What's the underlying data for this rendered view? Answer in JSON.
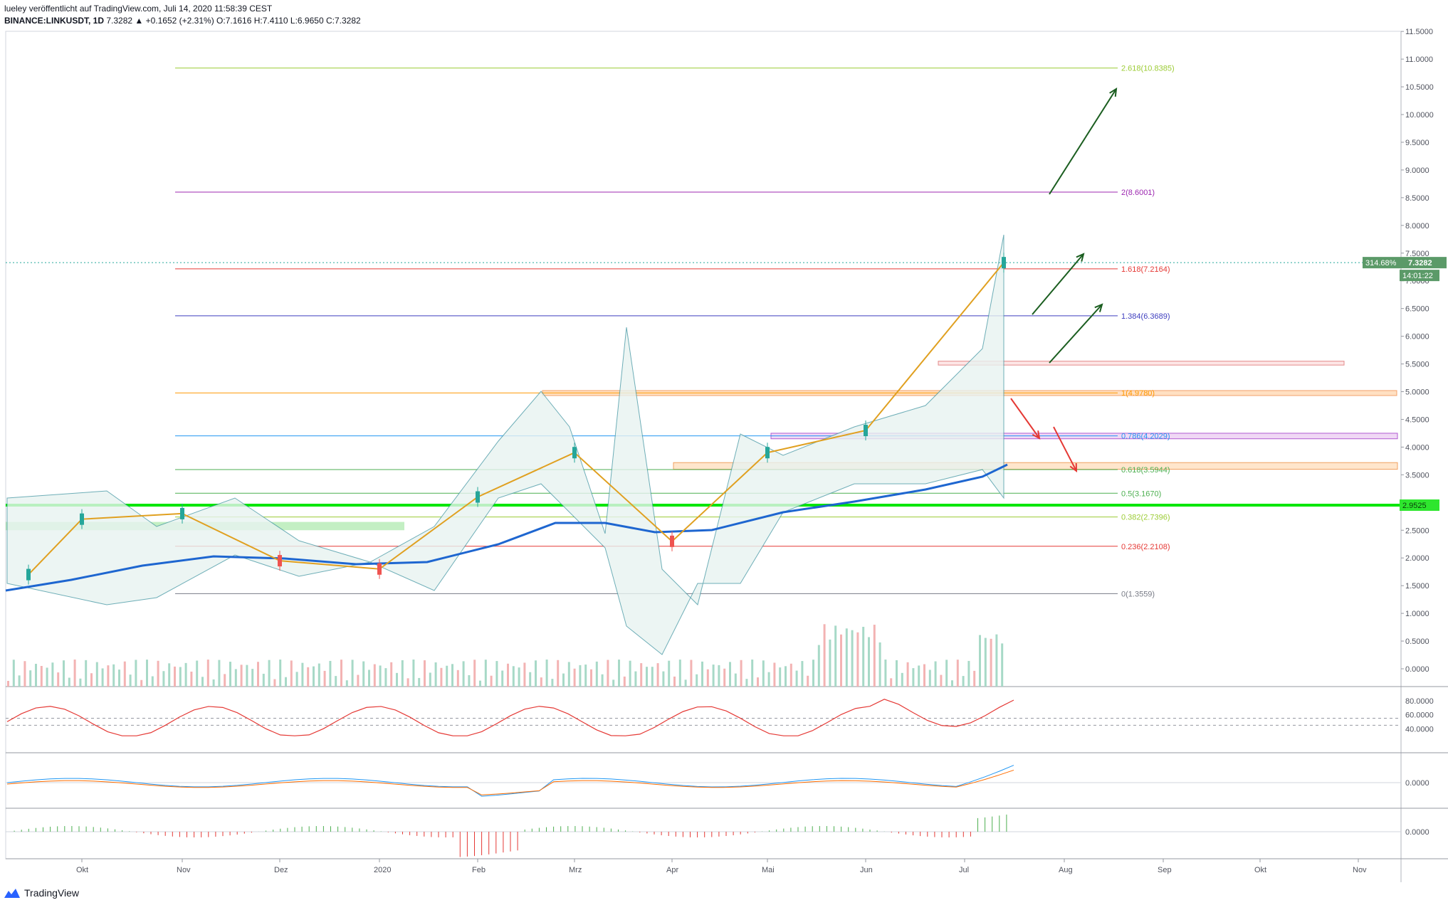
{
  "header": {
    "line1": "lueley veröffentlicht auf TradingView.com, Juli 14, 2020 11:58:39 CEST",
    "symbol": "BINANCE:LINKUSDT, 1D",
    "last": "7.3282",
    "change": "▲ +0.1652 (+2.31%)",
    "open_label": "O:",
    "open": "7.1616",
    "high_label": "H:",
    "high": "7.4110",
    "low_label": "L:",
    "low": "6.9650",
    "close_label": "C:",
    "close": "7.3282"
  },
  "footer": {
    "brand": "TradingView",
    "icon": "tradingview-logo-icon"
  },
  "price_axis": {
    "ticks": [
      "11.5000",
      "11.0000",
      "10.5000",
      "10.0000",
      "9.5000",
      "9.0000",
      "8.5000",
      "8.0000",
      "7.5000",
      "7.0000",
      "6.5000",
      "6.0000",
      "5.5000",
      "5.0000",
      "4.5000",
      "4.0000",
      "3.5000",
      "3.0000",
      "2.5000",
      "2.0000",
      "1.5000",
      "1.0000",
      "0.5000",
      "0.0000"
    ],
    "badges": [
      {
        "text": "314.68%",
        "value": "7.3282",
        "color": "#5b9a68"
      },
      {
        "text": "14:01:22",
        "color": "#5b9a68"
      },
      {
        "text": "2.9525",
        "color": "#2ee62e"
      }
    ]
  },
  "time_axis": {
    "labels": [
      "Okt",
      "Nov",
      "Dez",
      "2020",
      "Feb",
      "Mrz",
      "Apr",
      "Mai",
      "Jun",
      "Jul",
      "Aug",
      "Sep",
      "Okt",
      "Nov"
    ]
  },
  "fib_levels": [
    {
      "label": "2.618(10.8385)",
      "value": 10.8385,
      "color": "#9ccc35"
    },
    {
      "label": "2(8.6001)",
      "value": 8.6001,
      "color": "#9c27b0"
    },
    {
      "label": "1.618(7.2164)",
      "value": 7.2164,
      "color": "#e53935"
    },
    {
      "label": "1.384(6.3689)",
      "value": 6.3689,
      "color": "#3f3fbf"
    },
    {
      "label": "1(4.9780)",
      "value": 4.978,
      "color": "#ff9800"
    },
    {
      "label": "0.786(4.2029)",
      "value": 4.2029,
      "color": "#2196f3"
    },
    {
      "label": "0.618(3.5944)",
      "value": 3.5944,
      "color": "#4caf50"
    },
    {
      "label": "0.5(3.1670)",
      "value": 3.167,
      "color": "#4caf50"
    },
    {
      "label": "0.382(2.7396)",
      "value": 2.7396,
      "color": "#9ccc35"
    },
    {
      "label": "0.236(2.2108)",
      "value": 2.2108,
      "color": "#e53935"
    },
    {
      "label": "0(1.3559)",
      "value": 1.3559,
      "color": "#787b86"
    }
  ],
  "rsi_panel": {
    "ticks": [
      "80.0000",
      "60.0000",
      "40.0000"
    ]
  },
  "macd_panel": {
    "ticks": [
      "0.0000"
    ]
  },
  "osc_panel": {
    "ticks": [
      "0.0000"
    ]
  },
  "chart_data": {
    "type": "candlestick",
    "symbol": "BINANCE:LINKUSDT",
    "interval": "1D",
    "y_axis": {
      "min": 0,
      "max": 11.5,
      "unit": "USDT"
    },
    "series": [
      {
        "name": "LINKUSDT",
        "x": [
          "Sep",
          "Okt",
          "Nov",
          "Dez",
          "2020",
          "Feb",
          "Mrz",
          "Apr",
          "Mai",
          "Jun",
          "Jul 14"
        ],
        "close": [
          1.7,
          2.7,
          2.8,
          1.95,
          1.8,
          3.1,
          3.9,
          2.3,
          3.9,
          4.3,
          7.3282
        ]
      }
    ],
    "horizontal_levels": [
      2.9525
    ],
    "last_price": 7.3282,
    "change_percent_label": "314.68%",
    "colors": {
      "up": "#26a69a",
      "down": "#ef5350",
      "ma200": "#1e66d0",
      "support": "#00e600"
    }
  }
}
